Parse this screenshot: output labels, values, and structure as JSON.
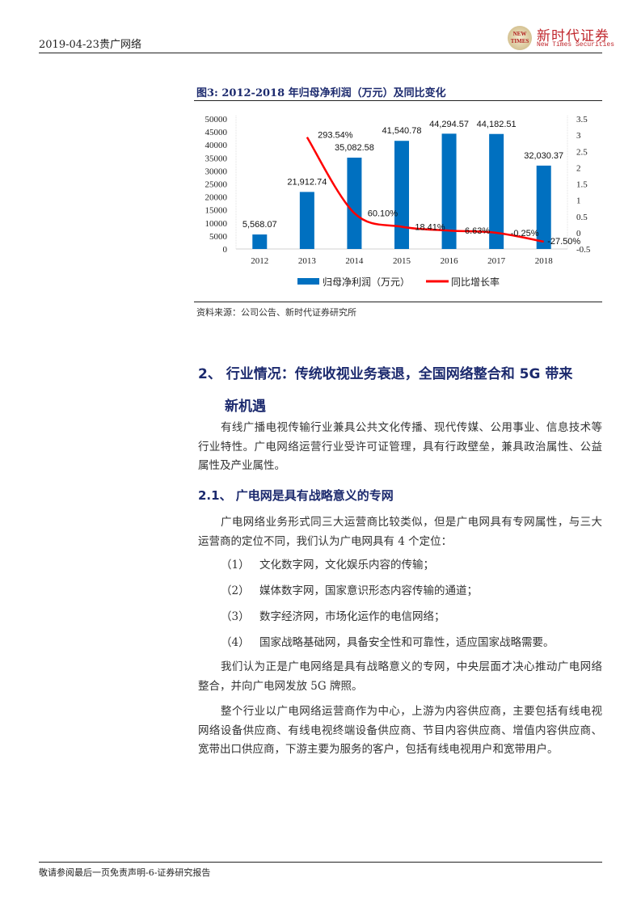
{
  "header": {
    "date_company": "2019-04-23贵广网络",
    "logo_cn": "新时代证券",
    "logo_en": "New Times Securities",
    "logo_badge": "NEW TIMES"
  },
  "figure": {
    "title": "图3:   2012-2018 年归母净利润（万元）及同比变化",
    "source": "资料来源：公司公告、新时代证券研究所"
  },
  "chart_data": {
    "type": "bar+line",
    "categories": [
      "2012",
      "2013",
      "2014",
      "2015",
      "2016",
      "2017",
      "2018"
    ],
    "series": [
      {
        "name": "归母净利润（万元）",
        "type": "bar",
        "axis": "left",
        "color": "#0070c0",
        "values": [
          5568.07,
          21912.74,
          35082.58,
          41540.78,
          44294.57,
          44182.51,
          32030.37
        ],
        "labels": [
          "5,568.07",
          "21,912.74",
          "35,082.58",
          "41,540.78",
          "44,294.57",
          "44,182.51",
          "32,030.37"
        ]
      },
      {
        "name": "同比增长率",
        "type": "line",
        "axis": "right",
        "color": "#ff0000",
        "values": [
          null,
          2.9354,
          0.601,
          0.1841,
          0.0663,
          -0.0025,
          -0.275
        ],
        "labels": [
          "",
          "293.54%",
          "60.10%",
          "18.41%",
          "6.63%",
          "-0.25%",
          "-27.50%"
        ]
      }
    ],
    "left_axis": {
      "range": [
        0,
        50000
      ],
      "ticks": [
        "0",
        "5000",
        "10000",
        "15000",
        "20000",
        "25000",
        "30000",
        "35000",
        "40000",
        "45000",
        "50000"
      ]
    },
    "right_axis": {
      "range": [
        -0.5,
        3.5
      ],
      "ticks": [
        "-0.5",
        "0",
        "0.5",
        "1",
        "1.5",
        "2",
        "2.5",
        "3",
        "3.5"
      ]
    },
    "legend": "bottom",
    "grid": false
  },
  "section2": {
    "heading_line1": "2、 行业情况：传统收视业务衰退，全国网络整合和 5G 带来",
    "heading_line2": "新机遇",
    "p1": [
      "有线广播电视传输行业兼具公共文化传播、现代传媒、公用事业、信息技术等",
      "行业特性。广电网络运营行业受许可证管理，具有行政壁垒，兼具政治属性、公益",
      "属性及产业属性。"
    ]
  },
  "section21": {
    "heading": "2.1、 广电网是具有战略意义的专网",
    "p2": [
      "广电网络业务形式同三大运营商比较类似，但是广电网具有专网属性，与三大",
      "运营商的定位不同，我们认为广电网具有 4 个定位："
    ],
    "list": [
      {
        "num": "（1）",
        "text": "文化数字网，文化娱乐内容的传输；"
      },
      {
        "num": "（2）",
        "text": "媒体数字网，国家意识形态内容传输的通道；"
      },
      {
        "num": "（3）",
        "text": "数字经济网，市场化运作的电信网络；"
      },
      {
        "num": "（4）",
        "text": "国家战略基础网，具备安全性和可靠性，适应国家战略需要。"
      }
    ],
    "p3": [
      "我们认为正是广电网络是具有战略意义的专网，中央层面才决心推动广电网络",
      "整合，并向广电网发放 5G 牌照。"
    ],
    "p4": [
      "整个行业以广电网络运营商作为中心，上游为内容供应商，主要包括有线电视",
      "网络设备供应商、有线电视终端设备供应商、节目内容供应商、增值内容供应商、",
      "宽带出口供应商，下游主要为服务的客户，包括有线电视用户和宽带用户。"
    ]
  },
  "footer": {
    "text": "敬请参阅最后一页免责声明-6-证券研究报告"
  }
}
